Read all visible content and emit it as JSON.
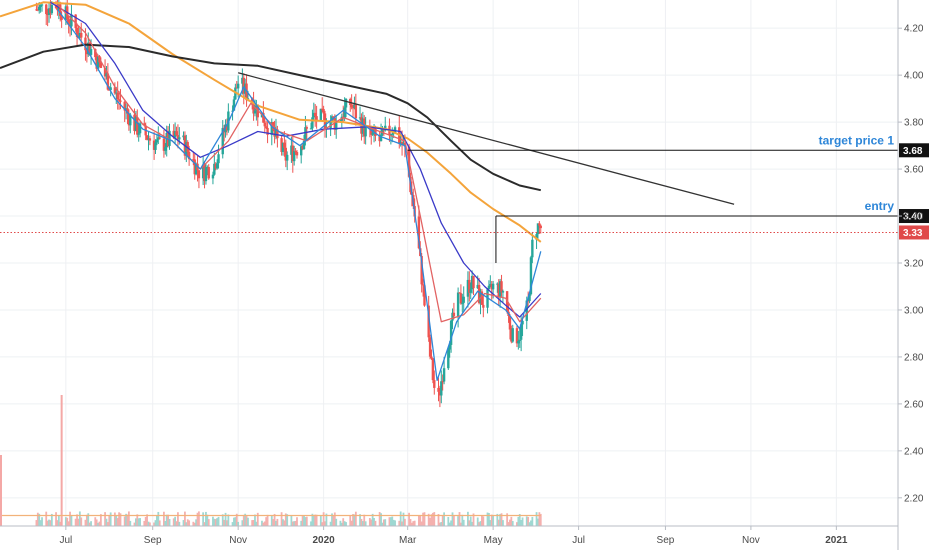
{
  "chart_data": {
    "type": "candlestick",
    "instrument": "",
    "title": "",
    "xlabel": "",
    "ylabel": "",
    "x_ticks": [
      "Jul",
      "Sep",
      "Nov",
      "2020",
      "Mar",
      "May",
      "Jul",
      "Sep",
      "Nov",
      "2021"
    ],
    "x_tick_dates": [
      "2019-07-01",
      "2019-09-01",
      "2019-11-01",
      "2020-01-01",
      "2020-03-01",
      "2020-05-01",
      "2020-07-01",
      "2020-09-01",
      "2020-11-01",
      "2021-01-01"
    ],
    "x_range": [
      "2019-05-15",
      "2021-02-14"
    ],
    "ylim": [
      2.08,
      4.32
    ],
    "y_ticks": [
      "4.20",
      "4.00",
      "3.80",
      "3.60",
      "3.40",
      "3.20",
      "3.00",
      "2.80",
      "2.60",
      "2.40",
      "2.20"
    ],
    "y_tick_values": [
      4.2,
      4.0,
      3.8,
      3.6,
      3.4,
      3.2,
      3.0,
      2.8,
      2.6,
      2.4,
      2.2
    ],
    "price_anchors": [
      [
        "2019-06-10",
        4.28
      ],
      [
        "2019-06-25",
        4.3
      ],
      [
        "2019-07-05",
        4.22
      ],
      [
        "2019-07-20",
        4.1
      ],
      [
        "2019-08-05",
        3.92
      ],
      [
        "2019-08-20",
        3.78
      ],
      [
        "2019-09-05",
        3.7
      ],
      [
        "2019-09-20",
        3.74
      ],
      [
        "2019-10-05",
        3.58
      ],
      [
        "2019-10-15",
        3.62
      ],
      [
        "2019-10-25",
        3.82
      ],
      [
        "2019-11-01",
        3.97
      ],
      [
        "2019-11-10",
        3.9
      ],
      [
        "2019-11-25",
        3.76
      ],
      [
        "2019-12-05",
        3.65
      ],
      [
        "2019-12-15",
        3.7
      ],
      [
        "2019-12-25",
        3.82
      ],
      [
        "2020-01-10",
        3.8
      ],
      [
        "2020-01-20",
        3.88
      ],
      [
        "2020-02-01",
        3.75
      ],
      [
        "2020-02-10",
        3.72
      ],
      [
        "2020-02-20",
        3.78
      ],
      [
        "2020-02-28",
        3.68
      ],
      [
        "2020-03-05",
        3.45
      ],
      [
        "2020-03-10",
        3.2
      ],
      [
        "2020-03-16",
        2.85
      ],
      [
        "2020-03-22",
        2.58
      ],
      [
        "2020-03-28",
        2.82
      ],
      [
        "2020-04-05",
        3.02
      ],
      [
        "2020-04-15",
        3.12
      ],
      [
        "2020-04-25",
        3.02
      ],
      [
        "2020-05-01",
        3.1
      ],
      [
        "2020-05-08",
        3.08
      ],
      [
        "2020-05-15",
        2.88
      ],
      [
        "2020-05-20",
        2.9
      ],
      [
        "2020-05-26",
        3.02
      ],
      [
        "2020-05-30",
        3.36
      ],
      [
        "2020-06-04",
        3.35
      ]
    ],
    "series": [
      {
        "type": "line",
        "color": "#f4a43b",
        "points": [
          [
            "2019-05-15",
            4.25
          ],
          [
            "2019-06-15",
            4.31
          ],
          [
            "2019-07-15",
            4.3
          ],
          [
            "2019-08-15",
            4.22
          ],
          [
            "2019-09-15",
            4.09
          ],
          [
            "2019-10-15",
            3.98
          ],
          [
            "2019-11-15",
            3.87
          ],
          [
            "2019-12-15",
            3.81
          ],
          [
            "2020-01-15",
            3.8
          ],
          [
            "2020-02-15",
            3.77
          ],
          [
            "2020-03-01",
            3.73
          ],
          [
            "2020-03-15",
            3.67
          ],
          [
            "2020-04-01",
            3.58
          ],
          [
            "2020-04-15",
            3.5
          ],
          [
            "2020-05-01",
            3.43
          ],
          [
            "2020-05-20",
            3.36
          ],
          [
            "2020-06-04",
            3.29
          ]
        ]
      },
      {
        "type": "line",
        "color": "#2b2b2b",
        "points": [
          [
            "2019-05-15",
            4.03
          ],
          [
            "2019-06-15",
            4.1
          ],
          [
            "2019-07-15",
            4.13
          ],
          [
            "2019-08-15",
            4.12
          ],
          [
            "2019-09-15",
            4.08
          ],
          [
            "2019-10-15",
            4.05
          ],
          [
            "2019-11-15",
            4.04
          ],
          [
            "2019-12-15",
            4.0
          ],
          [
            "2020-01-15",
            3.96
          ],
          [
            "2020-02-15",
            3.92
          ],
          [
            "2020-03-01",
            3.88
          ],
          [
            "2020-03-15",
            3.82
          ],
          [
            "2020-04-01",
            3.72
          ],
          [
            "2020-04-15",
            3.64
          ],
          [
            "2020-05-01",
            3.58
          ],
          [
            "2020-05-20",
            3.53
          ],
          [
            "2020-06-04",
            3.51
          ]
        ]
      },
      {
        "type": "line",
        "color": "#3a3ac8",
        "points": [
          [
            "2019-06-20",
            4.31
          ],
          [
            "2019-07-15",
            4.22
          ],
          [
            "2019-08-05",
            4.05
          ],
          [
            "2019-08-25",
            3.85
          ],
          [
            "2019-09-15",
            3.74
          ],
          [
            "2019-10-05",
            3.65
          ],
          [
            "2019-10-25",
            3.7
          ],
          [
            "2019-11-15",
            3.76
          ],
          [
            "2019-12-05",
            3.74
          ],
          [
            "2020-01-01",
            3.77
          ],
          [
            "2020-02-01",
            3.78
          ],
          [
            "2020-02-25",
            3.76
          ],
          [
            "2020-03-10",
            3.6
          ],
          [
            "2020-03-25",
            3.37
          ],
          [
            "2020-04-10",
            3.2
          ],
          [
            "2020-04-25",
            3.1
          ],
          [
            "2020-05-10",
            3.02
          ],
          [
            "2020-05-20",
            2.97
          ],
          [
            "2020-06-04",
            3.07
          ]
        ]
      },
      {
        "type": "line",
        "color": "#e26363",
        "points": [
          [
            "2019-06-25",
            4.3
          ],
          [
            "2019-07-15",
            4.18
          ],
          [
            "2019-08-05",
            3.95
          ],
          [
            "2019-08-25",
            3.79
          ],
          [
            "2019-09-15",
            3.72
          ],
          [
            "2019-10-05",
            3.6
          ],
          [
            "2019-10-25",
            3.72
          ],
          [
            "2019-11-10",
            3.88
          ],
          [
            "2019-11-30",
            3.76
          ],
          [
            "2019-12-20",
            3.72
          ],
          [
            "2020-01-15",
            3.82
          ],
          [
            "2020-02-10",
            3.76
          ],
          [
            "2020-02-28",
            3.72
          ],
          [
            "2020-03-10",
            3.4
          ],
          [
            "2020-03-25",
            2.95
          ],
          [
            "2020-04-10",
            2.98
          ],
          [
            "2020-04-25",
            3.07
          ],
          [
            "2020-05-10",
            3.05
          ],
          [
            "2020-05-20",
            2.95
          ],
          [
            "2020-06-04",
            3.05
          ]
        ]
      },
      {
        "type": "line",
        "color": "#2e86d8",
        "points": [
          [
            "2019-06-25",
            4.28
          ],
          [
            "2019-07-15",
            4.12
          ],
          [
            "2019-08-05",
            3.9
          ],
          [
            "2019-08-25",
            3.77
          ],
          [
            "2019-09-15",
            3.72
          ],
          [
            "2019-10-05",
            3.6
          ],
          [
            "2019-10-25",
            3.8
          ],
          [
            "2019-11-05",
            3.95
          ],
          [
            "2019-11-25",
            3.78
          ],
          [
            "2019-12-15",
            3.7
          ],
          [
            "2020-01-15",
            3.85
          ],
          [
            "2020-02-10",
            3.74
          ],
          [
            "2020-02-28",
            3.7
          ],
          [
            "2020-03-10",
            3.25
          ],
          [
            "2020-03-22",
            2.7
          ],
          [
            "2020-04-05",
            2.95
          ],
          [
            "2020-04-20",
            3.08
          ],
          [
            "2020-05-10",
            3.0
          ],
          [
            "2020-05-20",
            2.92
          ],
          [
            "2020-06-04",
            3.25
          ]
        ]
      }
    ],
    "trendlines": [
      {
        "color": "#333333",
        "from": [
          "2019-11-01",
          4.01
        ],
        "to": [
          "2020-10-20",
          3.45
        ]
      }
    ],
    "horizontal_levels": [
      {
        "label": "target price 1",
        "value": 3.68,
        "value_label": "3.68",
        "from": "2020-03-01",
        "label_color": "#2e86d8",
        "badge_color": "#111111"
      },
      {
        "label": "entry",
        "value": 3.4,
        "value_label": "3.40",
        "from": "2020-05-03",
        "label_color": "#2e86d8",
        "badge_color": "#111111"
      }
    ],
    "entry_marker": {
      "date": "2020-05-03",
      "from": 3.4,
      "to": 3.2
    },
    "current_price": {
      "value": 3.33,
      "label": "3.33",
      "color": "#e04a4a"
    },
    "volume": {
      "scale_max": 100,
      "spike": {
        "date": "2019-06-28",
        "value": 100
      },
      "baseline_value": 8,
      "moving_average_value": 8,
      "pane_start": "2019-05-15",
      "pane_end": "2020-06-04"
    },
    "grid": true,
    "legend": "none"
  }
}
